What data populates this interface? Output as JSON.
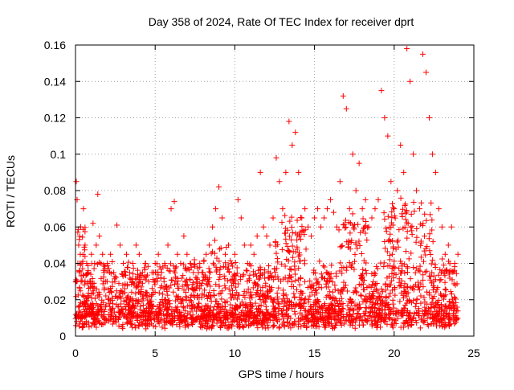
{
  "chart_data": {
    "type": "scatter",
    "title": "Day 358 of 2024, Rate Of TEC Index for receiver dprt",
    "xlabel": "GPS time / hours",
    "ylabel": "ROTI / TECUs",
    "xlim": [
      0,
      25
    ],
    "ylim": [
      0,
      0.16
    ],
    "xticks": [
      0,
      5,
      10,
      15,
      20,
      25
    ],
    "yticks": [
      0,
      0.02,
      0.04,
      0.06,
      0.08,
      0.1,
      0.12,
      0.14,
      0.16
    ],
    "xtick_labels": [
      "0",
      "5",
      "10",
      "15",
      "20",
      "25"
    ],
    "ytick_labels": [
      "0",
      "0.02",
      "0.04",
      "0.06",
      "0.08",
      "0.1",
      "0.12",
      "0.14",
      "0.16"
    ],
    "grid": true,
    "marker": "plus",
    "color": "#ff0000",
    "series": [
      {
        "x": [
          0.02,
          0.05,
          0.1,
          0.15,
          0.2,
          0.25,
          0.3,
          0.35,
          0.4,
          0.5,
          0.6,
          0.7,
          0.8,
          0.9,
          1.0,
          1.1,
          1.2,
          1.3,
          1.4,
          1.5,
          1.6,
          1.7,
          1.8,
          1.9,
          2.0,
          2.2,
          2.4,
          2.6,
          2.8,
          3.0,
          3.2,
          3.4,
          3.6,
          3.8,
          4.0,
          4.2,
          4.4,
          4.6,
          4.8,
          5.0,
          5.2,
          5.4,
          5.6,
          5.8,
          6.0,
          6.2,
          6.4,
          6.6,
          6.8,
          7.0,
          7.2,
          7.4,
          7.6,
          7.8,
          8.0,
          8.2,
          8.4,
          8.6,
          8.8,
          9.0,
          9.2,
          9.4,
          9.6,
          9.8,
          10.0,
          10.2,
          10.4,
          10.6,
          10.8,
          11.0,
          11.2,
          11.4,
          11.6,
          11.8,
          12.0,
          12.2,
          12.4,
          12.6,
          12.8,
          13.0,
          13.2,
          13.4,
          13.6,
          13.8,
          14.0,
          14.2,
          14.4,
          14.6,
          14.8,
          15.0,
          15.2,
          15.4,
          15.6,
          15.8,
          16.0,
          16.2,
          16.4,
          16.6,
          16.8,
          17.0,
          17.2,
          17.4,
          17.6,
          17.8,
          18.0,
          18.2,
          18.4,
          18.6,
          18.8,
          19.0,
          19.2,
          19.4,
          19.6,
          19.8,
          20.0,
          20.2,
          20.4,
          20.6,
          20.8,
          21.0,
          21.2,
          21.4,
          21.6,
          21.8,
          22.0,
          22.2,
          22.4,
          22.6,
          22.8,
          23.0,
          23.2,
          23.4,
          23.6,
          23.8,
          24.0
        ],
        "y": [
          0.03,
          0.085,
          0.075,
          0.04,
          0.05,
          0.035,
          0.045,
          0.03,
          0.04,
          0.07,
          0.05,
          0.04,
          0.035,
          0.03,
          0.045,
          0.062,
          0.04,
          0.05,
          0.078,
          0.055,
          0.04,
          0.045,
          0.035,
          0.03,
          0.04,
          0.045,
          0.035,
          0.061,
          0.05,
          0.04,
          0.045,
          0.035,
          0.04,
          0.05,
          0.045,
          0.035,
          0.04,
          0.03,
          0.035,
          0.04,
          0.045,
          0.035,
          0.04,
          0.05,
          0.07,
          0.074,
          0.045,
          0.04,
          0.055,
          0.045,
          0.04,
          0.035,
          0.03,
          0.04,
          0.035,
          0.045,
          0.05,
          0.06,
          0.07,
          0.082,
          0.065,
          0.045,
          0.05,
          0.04,
          0.045,
          0.075,
          0.065,
          0.05,
          0.04,
          0.05,
          0.045,
          0.055,
          0.09,
          0.06,
          0.055,
          0.05,
          0.065,
          0.098,
          0.085,
          0.07,
          0.09,
          0.118,
          0.105,
          0.112,
          0.09,
          0.065,
          0.07,
          0.06,
          0.055,
          0.065,
          0.07,
          0.06,
          0.065,
          0.07,
          0.075,
          0.068,
          0.06,
          0.085,
          0.132,
          0.125,
          0.07,
          0.1,
          0.08,
          0.095,
          0.07,
          0.075,
          0.06,
          0.065,
          0.07,
          0.075,
          0.135,
          0.12,
          0.11,
          0.085,
          0.07,
          0.08,
          0.105,
          0.09,
          0.158,
          0.14,
          0.1,
          0.08,
          0.07,
          0.155,
          0.145,
          0.12,
          0.1,
          0.09,
          0.07,
          0.06,
          0.045,
          0.05,
          0.06,
          0.04,
          0.045
        ]
      }
    ]
  }
}
